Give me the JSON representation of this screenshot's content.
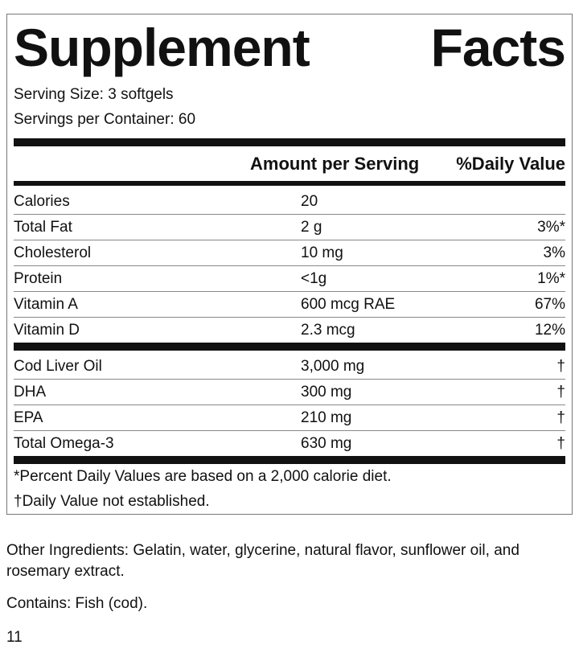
{
  "label": {
    "title_words": [
      "Supplement",
      "Facts"
    ],
    "serving_size": "Serving Size: 3 softgels",
    "servings_per_container": "Servings per Container: 60",
    "header": [
      "Amount per Serving",
      "%Daily Value"
    ],
    "section1": [
      [
        "Calories",
        "20",
        ""
      ],
      [
        "Total Fat",
        "2 g",
        "3%*"
      ],
      [
        "Cholesterol",
        "10 mg",
        "3%"
      ],
      [
        "Protein",
        "<1g",
        "1%*"
      ],
      [
        "Vitamin A",
        "600 mcg RAE",
        "67%"
      ],
      [
        "Vitamin D",
        "2.3 mcg",
        "12%"
      ]
    ],
    "section2": [
      [
        "Cod Liver Oil",
        "3,000 mg",
        "†"
      ],
      [
        "DHA",
        "300 mg",
        "†"
      ],
      [
        "EPA",
        "210 mg",
        "†"
      ],
      [
        "Total Omega-3",
        "630 mg",
        "†"
      ]
    ],
    "footnotes": [
      "*Percent Daily Values are based on a 2,000 calorie diet.",
      "†Daily Value not established."
    ]
  },
  "other_ingredients": "Other Ingredients: Gelatin, water, glycerine, natural flavor, sunflower oil, and rosemary extract.",
  "contains": "Contains: Fish (cod).",
  "page_number": "11"
}
